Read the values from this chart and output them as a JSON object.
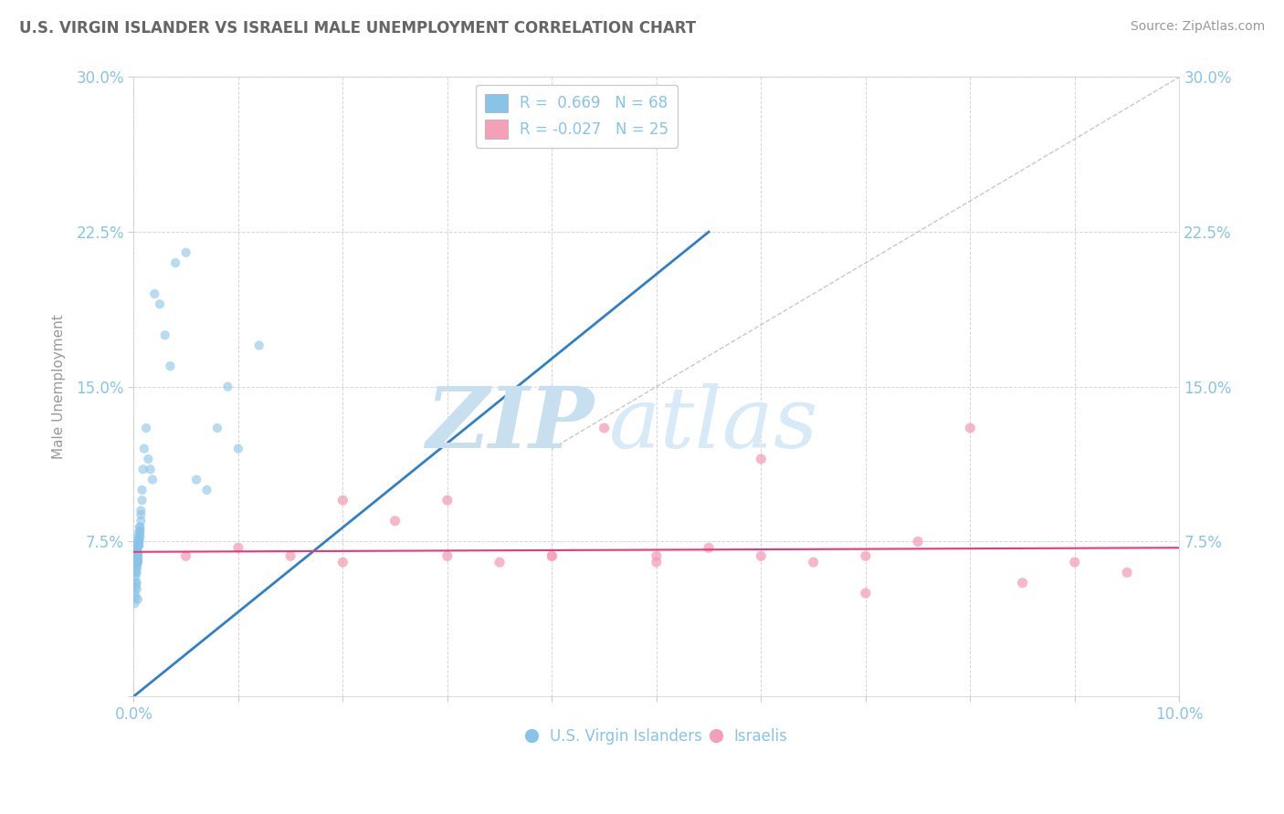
{
  "title": "U.S. VIRGIN ISLANDER VS ISRAELI MALE UNEMPLOYMENT CORRELATION CHART",
  "source": "Source: ZipAtlas.com",
  "ylabel": "Male Unemployment",
  "xlim": [
    0.0,
    0.1
  ],
  "ylim": [
    0.0,
    0.3
  ],
  "ytick_positions": [
    0.0,
    0.075,
    0.15,
    0.225,
    0.3
  ],
  "ytick_labels": [
    "",
    "7.5%",
    "15.0%",
    "22.5%",
    "30.0%"
  ],
  "xtick_positions": [
    0.0,
    0.01,
    0.02,
    0.03,
    0.04,
    0.05,
    0.06,
    0.07,
    0.08,
    0.09,
    0.1
  ],
  "xtick_labels": [
    "0.0%",
    "",
    "",
    "",
    "",
    "",
    "",
    "",
    "",
    "",
    "10.0%"
  ],
  "watermark_zip": "ZIP",
  "watermark_atlas": "atlas",
  "legend_R1": "R =  0.669",
  "legend_N1": "N = 68",
  "legend_R2": "R = -0.027",
  "legend_N2": "N = 25",
  "blue_color": "#88c4e8",
  "pink_color": "#f4a0b8",
  "blue_line_color": "#3080c8",
  "pink_line_color": "#e83878",
  "grid_color": "#cccccc",
  "title_color": "#666666",
  "axis_label_color": "#88c4e8",
  "background_color": "#ffffff",
  "vi_x": [
    0.0002,
    0.0003,
    0.0004,
    0.0002,
    0.0005,
    0.0003,
    0.0004,
    0.0006,
    0.0003,
    0.0002,
    0.0004,
    0.0005,
    0.0006,
    0.0004,
    0.0003,
    0.0002,
    0.0005,
    0.0007,
    0.0003,
    0.0004,
    0.0006,
    0.0004,
    0.0003,
    0.0005,
    0.0002,
    0.0003,
    0.0004,
    0.0005,
    0.0006,
    0.0007,
    0.0008,
    0.0006,
    0.0005,
    0.0004,
    0.0003,
    0.0002,
    0.0003,
    0.0004,
    0.0005,
    0.0006,
    0.0007,
    0.0008,
    0.0009,
    0.001,
    0.0012,
    0.0014,
    0.0016,
    0.0018,
    0.002,
    0.0025,
    0.003,
    0.0035,
    0.004,
    0.005,
    0.006,
    0.007,
    0.008,
    0.009,
    0.01,
    0.012,
    0.0001,
    0.0002,
    0.0003,
    0.0001,
    0.0002,
    0.0003,
    0.0004,
    0.0002
  ],
  "vi_y": [
    0.068,
    0.072,
    0.065,
    0.07,
    0.075,
    0.068,
    0.073,
    0.078,
    0.066,
    0.071,
    0.069,
    0.074,
    0.08,
    0.067,
    0.073,
    0.076,
    0.079,
    0.085,
    0.063,
    0.068,
    0.077,
    0.065,
    0.07,
    0.073,
    0.058,
    0.064,
    0.07,
    0.076,
    0.082,
    0.09,
    0.095,
    0.082,
    0.075,
    0.068,
    0.062,
    0.055,
    0.06,
    0.066,
    0.073,
    0.08,
    0.088,
    0.1,
    0.11,
    0.12,
    0.13,
    0.115,
    0.11,
    0.105,
    0.195,
    0.19,
    0.175,
    0.16,
    0.21,
    0.215,
    0.105,
    0.1,
    0.13,
    0.15,
    0.12,
    0.17,
    0.05,
    0.048,
    0.052,
    0.045,
    0.053,
    0.055,
    0.047,
    0.06
  ],
  "il_x": [
    0.005,
    0.01,
    0.015,
    0.02,
    0.025,
    0.03,
    0.035,
    0.04,
    0.045,
    0.05,
    0.055,
    0.06,
    0.065,
    0.07,
    0.075,
    0.08,
    0.085,
    0.09,
    0.095,
    0.02,
    0.03,
    0.04,
    0.05,
    0.06,
    0.07
  ],
  "il_y": [
    0.068,
    0.072,
    0.068,
    0.065,
    0.085,
    0.068,
    0.065,
    0.068,
    0.13,
    0.068,
    0.072,
    0.115,
    0.065,
    0.068,
    0.075,
    0.13,
    0.055,
    0.065,
    0.06,
    0.095,
    0.095,
    0.068,
    0.065,
    0.068,
    0.05
  ],
  "blue_line_x": [
    0.0,
    0.055
  ],
  "blue_line_y": [
    0.0,
    0.225
  ],
  "pink_line_x": [
    0.0,
    0.1
  ],
  "pink_line_y": [
    0.07,
    0.072
  ],
  "diag_line_x": [
    0.04,
    0.1
  ],
  "diag_line_y": [
    0.12,
    0.3
  ]
}
